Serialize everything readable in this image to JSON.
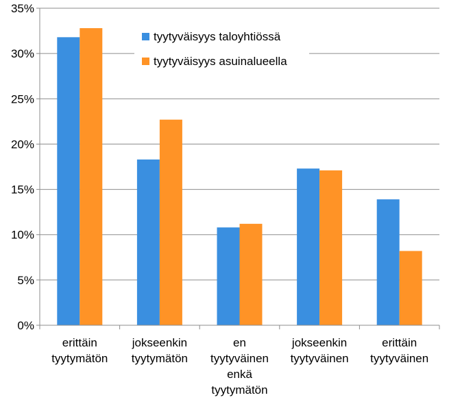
{
  "chart_data": {
    "type": "bar",
    "categories": [
      [
        "erittäin",
        "tyytymätön"
      ],
      [
        "jokseenkin",
        "tyytymätön"
      ],
      [
        "en",
        "tyytyväinen",
        "enkä",
        "tyytymätön"
      ],
      [
        "jokseenkin",
        "tyytyväinen"
      ],
      [
        "erittäin",
        "tyytyväinen"
      ]
    ],
    "series": [
      {
        "name": "tyytyväisyys taloyhtiössä",
        "color": "#3A8FE0",
        "values": [
          31.8,
          18.3,
          10.8,
          17.3,
          13.9
        ]
      },
      {
        "name": "tyytyväisyys asuinalueella",
        "color": "#FF9326",
        "values": [
          32.8,
          22.7,
          11.2,
          17.1,
          8.2
        ]
      }
    ],
    "ylim": [
      0,
      35
    ],
    "yticks": [
      0,
      5,
      10,
      15,
      20,
      25,
      30,
      35
    ],
    "ytick_labels": [
      "0%",
      "5%",
      "10%",
      "15%",
      "20%",
      "25%",
      "30%",
      "35%"
    ],
    "grid": true,
    "legend_position": "top-right",
    "title": "",
    "xlabel": "",
    "ylabel": ""
  }
}
